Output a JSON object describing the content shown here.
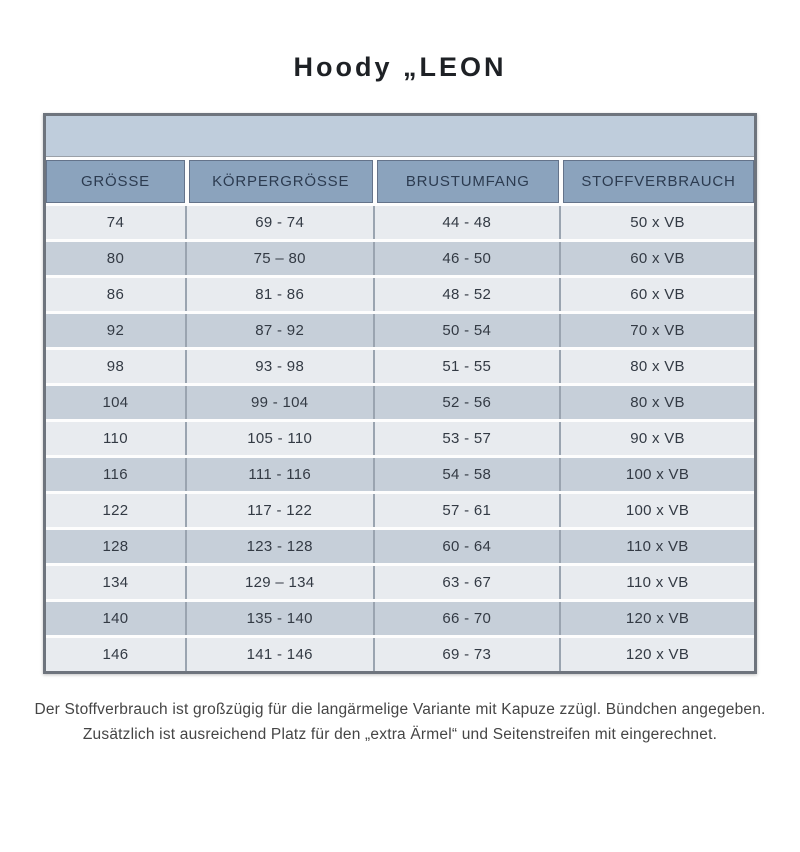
{
  "title": "Hoody „LEON",
  "table": {
    "headers": [
      "GRÖSSE",
      "KÖRPERGRÖSSE",
      "BRUSTUMFANG",
      "STOFFVERBRAUCH"
    ],
    "rows": [
      [
        "74",
        "69 - 74",
        "44 - 48",
        "50 x VB"
      ],
      [
        "80",
        "75 – 80",
        "46 - 50",
        "60 x VB"
      ],
      [
        "86",
        "81 - 86",
        "48 - 52",
        "60 x VB"
      ],
      [
        "92",
        "87 - 92",
        "50 - 54",
        "70 x VB"
      ],
      [
        "98",
        "93 - 98",
        "51 - 55",
        "80 x VB"
      ],
      [
        "104",
        "99 - 104",
        "52 - 56",
        "80 x VB"
      ],
      [
        "110",
        "105 - 110",
        "53 - 57",
        "90 x VB"
      ],
      [
        "116",
        "111 - 116",
        "54 - 58",
        "100 x VB"
      ],
      [
        "122",
        "117 - 122",
        "57 - 61",
        "100 x VB"
      ],
      [
        "128",
        "123 - 128",
        "60 - 64",
        "110 x VB"
      ],
      [
        "134",
        "129 – 134",
        "63 - 67",
        "110 x VB"
      ],
      [
        "140",
        "135 - 140",
        "66 - 70",
        "120 x VB"
      ],
      [
        "146",
        "141 - 146",
        "69 - 73",
        "120 x VB"
      ]
    ]
  },
  "footer": {
    "line1": "Der Stoffverbrauch ist großzügig für die langärmelige Variante mit Kapuze zzügl. Bündchen angegeben.",
    "line2": "Zusätzlich ist ausreichend Platz für den „extra Ärmel“ und Seitenstreifen mit eingerechnet."
  },
  "colors": {
    "outer_border": "#6e747d",
    "banner_bg": "#bfcddc",
    "header_bg": "#8ba3bd",
    "header_text": "#2c3b50",
    "row_light": "#e8ebef",
    "row_dark": "#c6cfd9",
    "cell_text": "#333a44",
    "divider": "#9aa4b0"
  }
}
